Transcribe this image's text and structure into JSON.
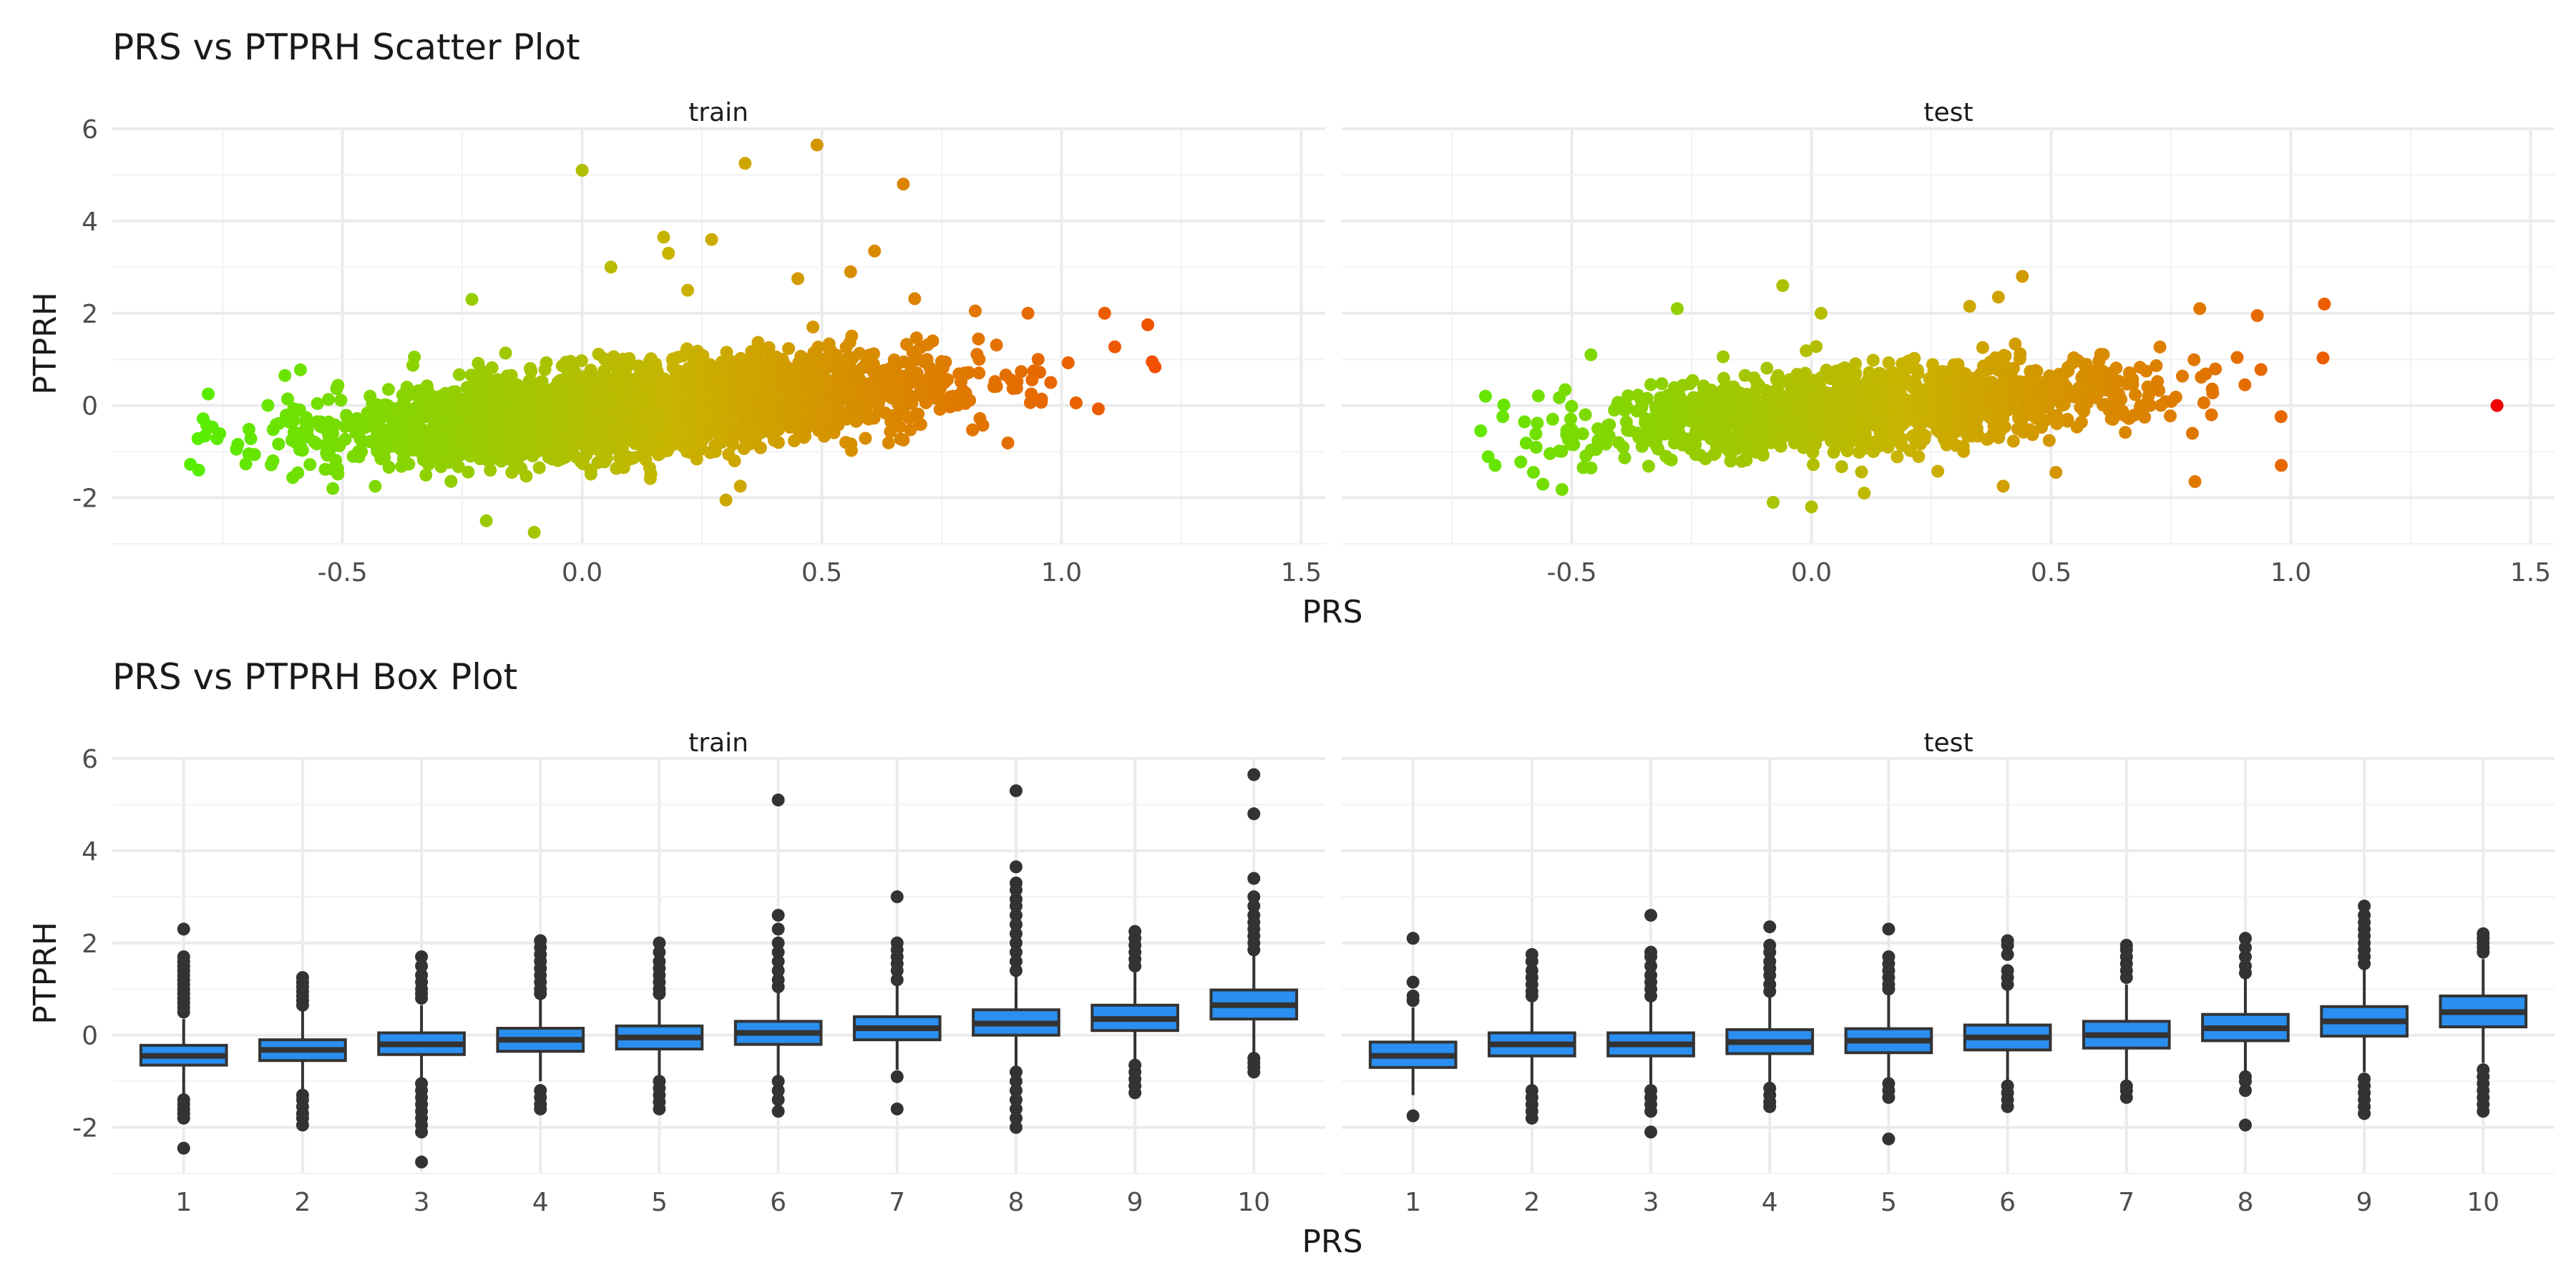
{
  "chart_data": [
    {
      "type": "scatter",
      "title": "PRS vs PTPRH Scatter Plot",
      "xlabel": "PRS",
      "ylabel": "PTPRH",
      "xlim": [
        -0.98,
        1.55
      ],
      "ylim": [
        -3.0,
        6.0
      ],
      "x_ticks": [
        -0.5,
        0.0,
        0.5,
        1.0,
        1.5
      ],
      "x_tick_labels": [
        "-0.5",
        "0.0",
        "0.5",
        "1.0",
        "1.5"
      ],
      "y_ticks": [
        -2,
        0,
        2,
        4,
        6
      ],
      "y_tick_labels": [
        "-2",
        "0",
        "2",
        "4",
        "6"
      ],
      "grid": true,
      "legend": "none",
      "color_scale": {
        "low": "#55ee00",
        "mid": "#c8b400",
        "high": "#f05000",
        "extreme": "#ee0000",
        "domain": [
          -0.82,
          1.2
        ]
      },
      "trend": {
        "slope": 0.82,
        "intercept": -0.18
      },
      "panels": [
        {
          "name": "train",
          "core": {
            "n": 3400,
            "x_mean": 0.12,
            "x_sd": 0.3,
            "x_min": -0.82,
            "x_max": 1.2,
            "resid_sd": 0.45
          },
          "outliers": [
            [
              0.0,
              5.1
            ],
            [
              0.34,
              5.25
            ],
            [
              0.49,
              5.65
            ],
            [
              0.67,
              4.8
            ],
            [
              0.17,
              3.65
            ],
            [
              0.27,
              3.6
            ],
            [
              0.61,
              3.35
            ],
            [
              -0.23,
              2.3
            ],
            [
              0.06,
              3.0
            ],
            [
              0.18,
              3.3
            ],
            [
              0.56,
              2.9
            ],
            [
              0.45,
              2.75
            ],
            [
              0.22,
              2.5
            ],
            [
              -0.1,
              -2.75
            ],
            [
              -0.2,
              -2.5
            ],
            [
              0.3,
              -2.05
            ],
            [
              0.33,
              -1.75
            ],
            [
              0.55,
              -0.8
            ],
            [
              0.67,
              -0.75
            ],
            [
              -0.78,
              0.25
            ],
            [
              -0.62,
              0.65
            ],
            [
              -0.35,
              1.05
            ],
            [
              1.18,
              1.75
            ],
            [
              1.09,
              2.0
            ],
            [
              0.82,
              2.05
            ],
            [
              0.93,
              2.0
            ],
            [
              -0.8,
              -1.4
            ],
            [
              -0.52,
              -1.8
            ]
          ]
        },
        {
          "name": "test",
          "core": {
            "n": 1400,
            "x_mean": 0.12,
            "x_sd": 0.3,
            "x_min": -0.7,
            "x_max": 1.07,
            "resid_sd": 0.42
          },
          "outliers": [
            [
              1.43,
              0.0
            ],
            [
              0.8,
              -1.65
            ],
            [
              0.98,
              -1.3
            ],
            [
              1.07,
              2.2
            ],
            [
              -0.06,
              2.6
            ],
            [
              0.02,
              2.0
            ],
            [
              -0.28,
              2.1
            ],
            [
              -0.46,
              1.1
            ],
            [
              0.39,
              2.35
            ],
            [
              0.44,
              2.8
            ],
            [
              0.33,
              2.15
            ],
            [
              0.11,
              -1.9
            ],
            [
              0.0,
              -2.2
            ],
            [
              -0.08,
              -2.1
            ],
            [
              0.4,
              -1.75
            ],
            [
              0.51,
              -1.45
            ],
            [
              -0.68,
              0.2
            ],
            [
              -0.69,
              -0.55
            ],
            [
              -0.66,
              -1.3
            ],
            [
              -0.58,
              -1.45
            ],
            [
              0.81,
              2.1
            ],
            [
              0.93,
              1.95
            ]
          ]
        }
      ]
    },
    {
      "type": "box",
      "title": "PRS vs PTPRH Box Plot",
      "xlabel": "PRS",
      "ylabel": "PTPRH",
      "categories": [
        "1",
        "2",
        "3",
        "4",
        "5",
        "6",
        "7",
        "8",
        "9",
        "10"
      ],
      "ylim": [
        -3.0,
        6.0
      ],
      "y_ticks": [
        -2,
        0,
        2,
        4,
        6
      ],
      "y_tick_labels": [
        "-2",
        "0",
        "2",
        "4",
        "6"
      ],
      "grid": true,
      "legend": "none",
      "box_color": "#2a8ff0",
      "line_color": "#333333",
      "panels": [
        {
          "name": "train",
          "boxes": [
            {
              "q1": -0.65,
              "median": -0.45,
              "q3": -0.22,
              "lo": -1.3,
              "hi": 0.35,
              "outliers": [
                2.3,
                1.7,
                1.6,
                1.5,
                1.4,
                1.3,
                1.2,
                1.1,
                1.0,
                0.9,
                0.8,
                0.7,
                0.6,
                0.5,
                -1.4,
                -1.5,
                -1.6,
                -1.7,
                -1.8,
                -2.45
              ]
            },
            {
              "q1": -0.55,
              "median": -0.32,
              "q3": -0.1,
              "lo": -1.2,
              "hi": 0.55,
              "outliers": [
                1.25,
                1.15,
                1.05,
                0.95,
                0.85,
                0.75,
                0.65,
                -1.3,
                -1.4,
                -1.55,
                -1.7,
                -1.8,
                -1.95
              ]
            },
            {
              "q1": -0.42,
              "median": -0.2,
              "q3": 0.05,
              "lo": -1.0,
              "hi": 0.65,
              "outliers": [
                1.7,
                1.5,
                1.3,
                1.15,
                1.0,
                0.9,
                0.8,
                -1.05,
                -1.2,
                -1.35,
                -1.5,
                -1.65,
                -1.8,
                -1.95,
                -2.1,
                -2.75
              ]
            },
            {
              "q1": -0.35,
              "median": -0.1,
              "q3": 0.15,
              "lo": -1.0,
              "hi": 0.8,
              "outliers": [
                2.05,
                1.9,
                1.75,
                1.6,
                1.45,
                1.3,
                1.15,
                1.0,
                0.9,
                -1.2,
                -1.35,
                -1.5,
                -1.6
              ]
            },
            {
              "q1": -0.3,
              "median": -0.05,
              "q3": 0.2,
              "lo": -0.95,
              "hi": 0.85,
              "outliers": [
                2.0,
                1.8,
                1.6,
                1.45,
                1.3,
                1.15,
                1.0,
                0.9,
                -1.0,
                -1.15,
                -1.3,
                -1.45,
                -1.6
              ]
            },
            {
              "q1": -0.2,
              "median": 0.05,
              "q3": 0.3,
              "lo": -0.9,
              "hi": 1.0,
              "outliers": [
                5.1,
                2.6,
                2.3,
                2.0,
                1.8,
                1.6,
                1.4,
                1.2,
                1.05,
                -1.0,
                -1.2,
                -1.4,
                -1.65
              ]
            },
            {
              "q1": -0.1,
              "median": 0.15,
              "q3": 0.4,
              "lo": -0.75,
              "hi": 1.1,
              "outliers": [
                3.0,
                2.0,
                1.85,
                1.7,
                1.55,
                1.4,
                1.2,
                -0.9,
                -1.6
              ]
            },
            {
              "q1": 0.0,
              "median": 0.25,
              "q3": 0.55,
              "lo": -0.75,
              "hi": 1.3,
              "outliers": [
                5.3,
                3.65,
                3.3,
                3.15,
                2.95,
                2.8,
                2.6,
                2.4,
                2.2,
                2.0,
                1.8,
                1.6,
                1.4,
                -0.8,
                -1.0,
                -1.2,
                -1.4,
                -1.6,
                -1.8,
                -2.0
              ]
            },
            {
              "q1": 0.1,
              "median": 0.35,
              "q3": 0.65,
              "lo": -0.55,
              "hi": 1.45,
              "outliers": [
                2.25,
                2.1,
                1.95,
                1.8,
                1.65,
                1.5,
                -0.65,
                -0.8,
                -0.95,
                -1.1,
                -1.25
              ]
            },
            {
              "q1": 0.35,
              "median": 0.65,
              "q3": 0.98,
              "lo": -0.45,
              "hi": 1.75,
              "outliers": [
                5.65,
                4.8,
                3.4,
                3.0,
                2.8,
                2.6,
                2.45,
                2.3,
                2.15,
                2.0,
                1.85,
                -0.5,
                -0.6,
                -0.7,
                -0.8
              ]
            }
          ]
        },
        {
          "name": "test",
          "boxes": [
            {
              "q1": -0.7,
              "median": -0.45,
              "q3": -0.15,
              "lo": -1.3,
              "hi": 0.6,
              "outliers": [
                2.1,
                1.15,
                0.85,
                0.75,
                -1.75
              ]
            },
            {
              "q1": -0.45,
              "median": -0.2,
              "q3": 0.05,
              "lo": -1.1,
              "hi": 0.75,
              "outliers": [
                1.75,
                1.6,
                1.4,
                1.25,
                1.1,
                0.95,
                0.85,
                -1.2,
                -1.35,
                -1.5,
                -1.65,
                -1.8
              ]
            },
            {
              "q1": -0.45,
              "median": -0.2,
              "q3": 0.05,
              "lo": -1.1,
              "hi": 0.75,
              "outliers": [
                2.6,
                1.8,
                1.7,
                1.5,
                1.3,
                1.15,
                1.0,
                0.85,
                -1.2,
                -1.35,
                -1.5,
                -1.65,
                -2.1
              ]
            },
            {
              "q1": -0.4,
              "median": -0.15,
              "q3": 0.12,
              "lo": -1.05,
              "hi": 0.85,
              "outliers": [
                2.35,
                1.95,
                1.8,
                1.6,
                1.45,
                1.3,
                1.1,
                0.95,
                -1.15,
                -1.3,
                -1.45,
                -1.55
              ]
            },
            {
              "q1": -0.38,
              "median": -0.12,
              "q3": 0.14,
              "lo": -1.0,
              "hi": 0.9,
              "outliers": [
                2.3,
                1.7,
                1.55,
                1.4,
                1.25,
                1.1,
                1.0,
                -1.05,
                -1.2,
                -1.35,
                -2.25
              ]
            },
            {
              "q1": -0.32,
              "median": -0.05,
              "q3": 0.22,
              "lo": -1.0,
              "hi": 1.0,
              "outliers": [
                2.05,
                1.95,
                1.75,
                1.4,
                1.25,
                1.1,
                -1.1,
                -1.25,
                -1.4,
                -1.55
              ]
            },
            {
              "q1": -0.28,
              "median": 0.0,
              "q3": 0.3,
              "lo": -1.0,
              "hi": 1.1,
              "outliers": [
                1.95,
                1.85,
                1.7,
                1.55,
                1.4,
                1.25,
                -1.1,
                -1.2,
                -1.35
              ]
            },
            {
              "q1": -0.12,
              "median": 0.15,
              "q3": 0.45,
              "lo": -0.85,
              "hi": 1.25,
              "outliers": [
                2.1,
                1.9,
                1.7,
                1.5,
                1.35,
                -0.9,
                -1.0,
                -1.2,
                -1.95
              ]
            },
            {
              "q1": -0.02,
              "median": 0.3,
              "q3": 0.62,
              "lo": -0.8,
              "hi": 1.45,
              "outliers": [
                2.8,
                2.6,
                2.45,
                2.3,
                2.15,
                2.0,
                1.85,
                1.7,
                1.55,
                -0.95,
                -1.1,
                -1.25,
                -1.4,
                -1.55,
                -1.7
              ]
            },
            {
              "q1": 0.18,
              "median": 0.5,
              "q3": 0.85,
              "lo": -0.6,
              "hi": 1.65,
              "outliers": [
                2.2,
                2.1,
                2.0,
                1.9,
                1.8,
                -0.75,
                -0.9,
                -1.05,
                -1.2,
                -1.35,
                -1.5,
                -1.65
              ]
            }
          ]
        }
      ]
    }
  ]
}
